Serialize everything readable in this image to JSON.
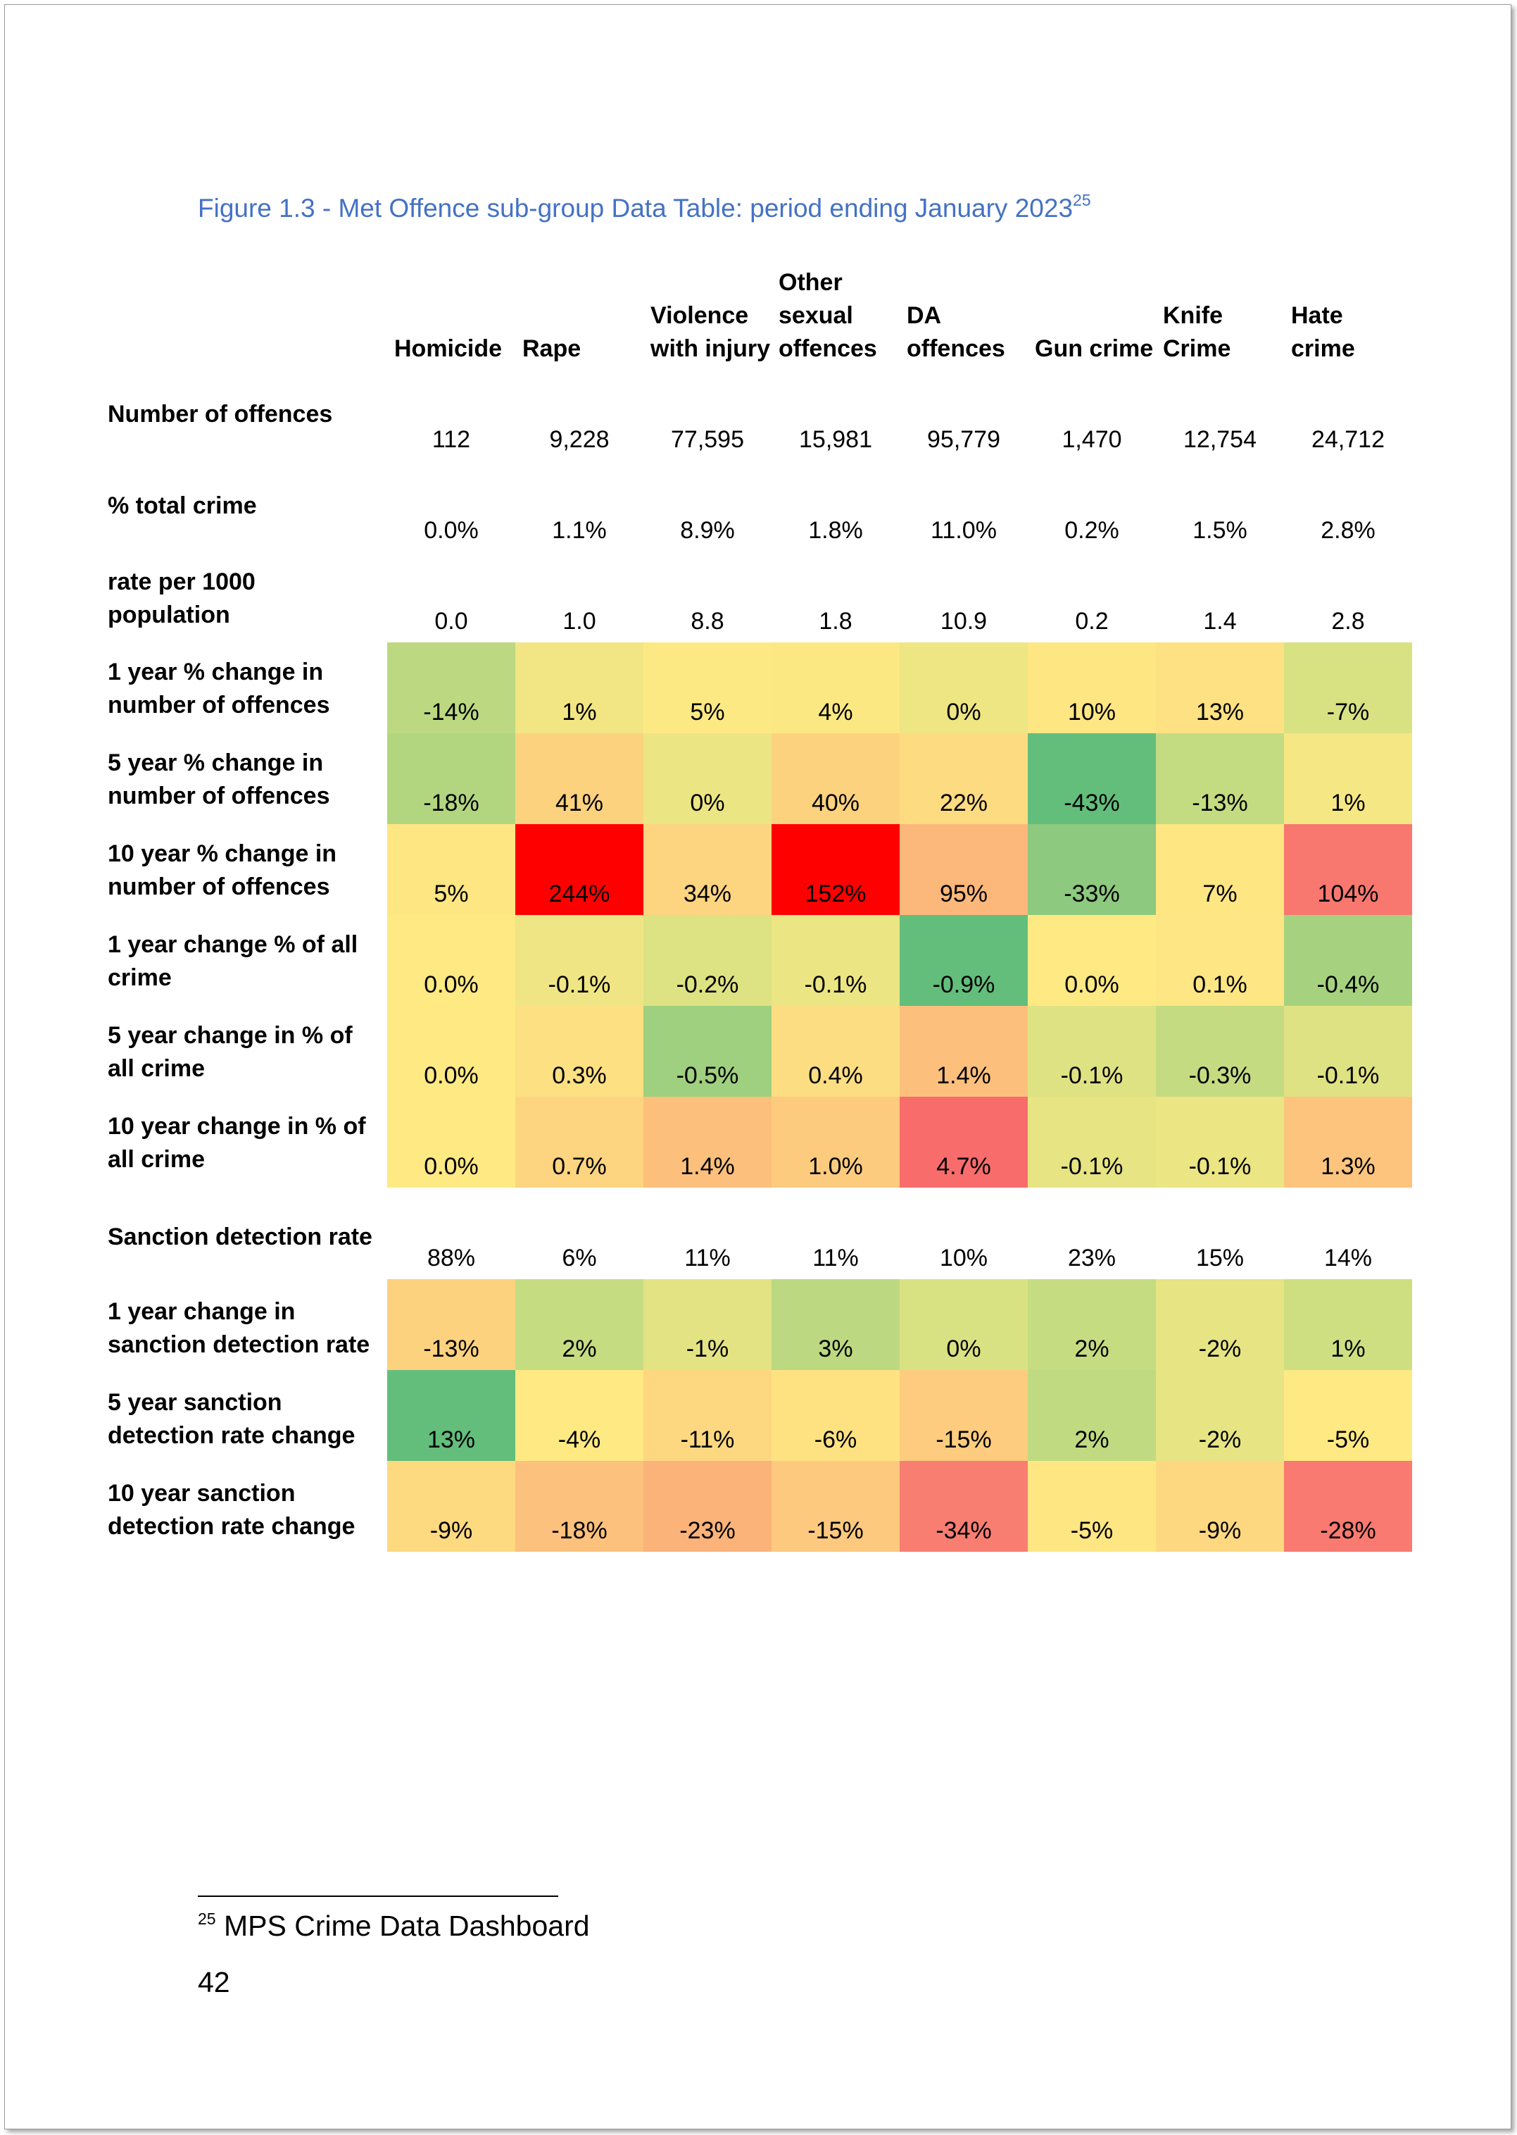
{
  "caption": {
    "text": "Figure 1.3 - Met Offence sub-group Data Table: period ending January 2023",
    "footnote_ref": "25"
  },
  "columns": [
    "Homicide",
    "Rape",
    "Violence\nwith injury",
    "Other\nsexual\noffences",
    "DA\noffences",
    "Gun crime",
    "Knife\nCrime",
    "Hate\ncrime"
  ],
  "rows": [
    {
      "label": "Number of offences",
      "values": [
        "112",
        "9,228",
        "77,595",
        "15,981",
        "95,779",
        "1,470",
        "12,754",
        "24,712"
      ]
    },
    {
      "label": "% total crime",
      "values": [
        "0.0%",
        "1.1%",
        "8.9%",
        "1.8%",
        "11.0%",
        "0.2%",
        "1.5%",
        "2.8%"
      ]
    },
    {
      "label": "rate per 1000\npopulation",
      "values": [
        "0.0",
        "1.0",
        "8.8",
        "1.8",
        "10.9",
        "0.2",
        "1.4",
        "2.8"
      ]
    },
    {
      "label": "1 year % change in\nnumber of offences",
      "values": [
        "-14%",
        "1%",
        "5%",
        "4%",
        "0%",
        "10%",
        "13%",
        "-7%"
      ],
      "colors": [
        "#bcd982",
        "#f2e584",
        "#fde984",
        "#fce883",
        "#eee583",
        "#fee683",
        "#fde182",
        "#d8e283"
      ]
    },
    {
      "label": "5 year % change in\nnumber of offences",
      "values": [
        "-18%",
        "41%",
        "0%",
        "40%",
        "22%",
        "-43%",
        "-13%",
        "1%"
      ],
      "colors": [
        "#b2d680",
        "#fdd27f",
        "#ece583",
        "#fdd27f",
        "#fddb81",
        "#63be7b",
        "#c4dc81",
        "#f5e784"
      ]
    },
    {
      "label": "10 year % change in\nnumber of offences",
      "values": [
        "5%",
        "244%",
        "34%",
        "152%",
        "95%",
        "-33%",
        "7%",
        "104%"
      ],
      "colors": [
        "#fee683",
        "#ff0000",
        "#fdd480",
        "#ff0000",
        "#fcb77a",
        "#8dc97e",
        "#fee683",
        "#f8786f"
      ]
    },
    {
      "label": "1 year change % of all\ncrime",
      "values": [
        "0.0%",
        "-0.1%",
        "-0.2%",
        "-0.1%",
        "-0.9%",
        "0.0%",
        "0.1%",
        "-0.4%"
      ],
      "colors": [
        "#fee983",
        "#f0e584",
        "#dde283",
        "#ece584",
        "#63be7b",
        "#fee983",
        "#fde683",
        "#a6d27f"
      ]
    },
    {
      "label": "5 year change in % of\nall crime",
      "values": [
        "0.0%",
        "0.3%",
        "-0.5%",
        "0.4%",
        "1.4%",
        "-0.1%",
        "-0.3%",
        "-0.1%"
      ],
      "colors": [
        "#fee983",
        "#fde082",
        "#9fd07f",
        "#fddd81",
        "#fcc07c",
        "#dfe283",
        "#c5db81",
        "#dfe283"
      ]
    },
    {
      "label": "10 year change in % of\nall crime",
      "values": [
        "0.0%",
        "0.7%",
        "1.4%",
        "1.0%",
        "4.7%",
        "-0.1%",
        "-0.1%",
        "1.3%"
      ],
      "colors": [
        "#fee983",
        "#fdd580",
        "#fcc07c",
        "#fdcb7e",
        "#f86c6b",
        "#e6e483",
        "#ebe583",
        "#fcc47d"
      ]
    },
    {
      "label": "Sanction detection rate",
      "values": [
        "88%",
        "6%",
        "11%",
        "11%",
        "10%",
        "23%",
        "15%",
        "14%"
      ]
    },
    {
      "label": "1 year change in\nsanction detection rate",
      "values": [
        "-13%",
        "2%",
        "-1%",
        "3%",
        "0%",
        "2%",
        "-2%",
        "1%"
      ],
      "colors": [
        "#fdd27f",
        "#c5dc81",
        "#e3e383",
        "#bcd982",
        "#d9e283",
        "#c5dc81",
        "#e6e483",
        "#cedf82"
      ]
    },
    {
      "label": "5 year sanction\ndetection rate change",
      "values": [
        "13%",
        "-4%",
        "-11%",
        "-6%",
        "-15%",
        "2%",
        "-2%",
        "-5%"
      ],
      "colors": [
        "#63be7b",
        "#fee983",
        "#fdd880",
        "#fee282",
        "#fdcc7e",
        "#c0da81",
        "#e6e483",
        "#fee983"
      ]
    },
    {
      "label": "10 year sanction\ndetection rate change",
      "values": [
        "-9%",
        "-18%",
        "-23%",
        "-15%",
        "-34%",
        "-5%",
        "-9%",
        "-28%"
      ],
      "colors": [
        "#fdd980",
        "#fcc17c",
        "#fbb379",
        "#fdc97e",
        "#f87e71",
        "#fee683",
        "#fdd880",
        "#f87a70"
      ]
    }
  ],
  "footnote": {
    "ref": "25",
    "text": "MPS Crime Data Dashboard"
  },
  "page_number": "42"
}
